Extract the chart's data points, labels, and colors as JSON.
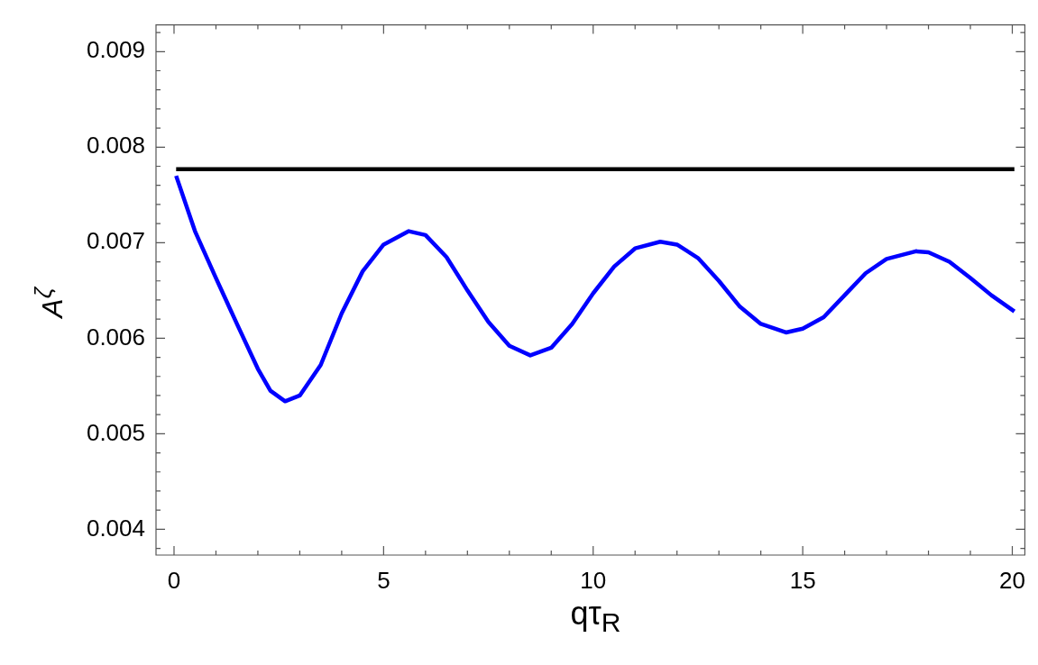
{
  "chart_data": {
    "type": "line",
    "xlabel": "qτ$_{R}$",
    "ylabel": "A$^{ζ}$",
    "xlim": [
      -0.43,
      20.3
    ],
    "ylim": [
      0.00373,
      0.00928
    ],
    "xticks": [
      0,
      {
        "value": 1,
        "label": null
      },
      {
        "value": 2,
        "label": null
      },
      {
        "value": 3,
        "label": null
      },
      {
        "value": 4,
        "label": null
      },
      5,
      {
        "value": 6,
        "label": null
      },
      {
        "value": 7,
        "label": null
      },
      {
        "value": 8,
        "label": null
      },
      {
        "value": 9,
        "label": null
      },
      10,
      {
        "value": 11,
        "label": null
      },
      {
        "value": 12,
        "label": null
      },
      {
        "value": 13,
        "label": null
      },
      {
        "value": 14,
        "label": null
      },
      15,
      {
        "value": 16,
        "label": null
      },
      {
        "value": 17,
        "label": null
      },
      {
        "value": 18,
        "label": null
      },
      {
        "value": 19,
        "label": null
      },
      20
    ],
    "yticks": [
      {
        "value": 0.0038,
        "label": null
      },
      {
        "value": 0.004,
        "label": "0.004"
      },
      {
        "value": 0.0042,
        "label": null
      },
      {
        "value": 0.0044,
        "label": null
      },
      {
        "value": 0.0046,
        "label": null
      },
      {
        "value": 0.0048,
        "label": null
      },
      {
        "value": 0.005,
        "label": "0.005"
      },
      {
        "value": 0.0052,
        "label": null
      },
      {
        "value": 0.0054,
        "label": null
      },
      {
        "value": 0.0056,
        "label": null
      },
      {
        "value": 0.0058,
        "label": null
      },
      {
        "value": 0.006,
        "label": "0.006"
      },
      {
        "value": 0.0062,
        "label": null
      },
      {
        "value": 0.0064,
        "label": null
      },
      {
        "value": 0.0066,
        "label": null
      },
      {
        "value": 0.0068,
        "label": null
      },
      {
        "value": 0.007,
        "label": "0.007"
      },
      {
        "value": 0.0072,
        "label": null
      },
      {
        "value": 0.0074,
        "label": null
      },
      {
        "value": 0.0076,
        "label": null
      },
      {
        "value": 0.0078,
        "label": null
      },
      {
        "value": 0.008,
        "label": "0.008"
      },
      {
        "value": 0.0082,
        "label": null
      },
      {
        "value": 0.0084,
        "label": null
      },
      {
        "value": 0.0086,
        "label": null
      },
      {
        "value": 0.0088,
        "label": null
      },
      {
        "value": 0.009,
        "label": "0.009"
      },
      {
        "value": 0.0092,
        "label": null
      }
    ],
    "grid": false,
    "legend": false,
    "marker": "none",
    "line_style": "solid",
    "series": [
      {
        "color": "#000000",
        "x": [
          0.05,
          20.05
        ],
        "values": [
          0.00777,
          0.00777
        ]
      },
      {
        "color": "#0000ff",
        "x": [
          0.05,
          0.5,
          1,
          1.5,
          2,
          2.3,
          2.65,
          3,
          3.5,
          4,
          4.5,
          5,
          5.6,
          6,
          6.5,
          7,
          7.5,
          8,
          8.5,
          9,
          9.5,
          10,
          10.5,
          11,
          11.6,
          12,
          12.5,
          13,
          13.5,
          14,
          14.6,
          15,
          15.5,
          16,
          16.5,
          17,
          17.7,
          18,
          18.5,
          19,
          19.5,
          20.05
        ],
        "values": [
          0.0077,
          0.00712,
          0.00663,
          0.00615,
          0.00568,
          0.00545,
          0.00534,
          0.0054,
          0.00572,
          0.00626,
          0.0067,
          0.00698,
          0.00712,
          0.00708,
          0.00685,
          0.0065,
          0.00617,
          0.00592,
          0.00582,
          0.0059,
          0.00615,
          0.00647,
          0.00675,
          0.00694,
          0.00701,
          0.00698,
          0.00684,
          0.0066,
          0.00633,
          0.00615,
          0.00606,
          0.0061,
          0.00622,
          0.00645,
          0.00668,
          0.00683,
          0.00691,
          0.0069,
          0.0068,
          0.00663,
          0.00645,
          0.00628
        ]
      }
    ]
  }
}
